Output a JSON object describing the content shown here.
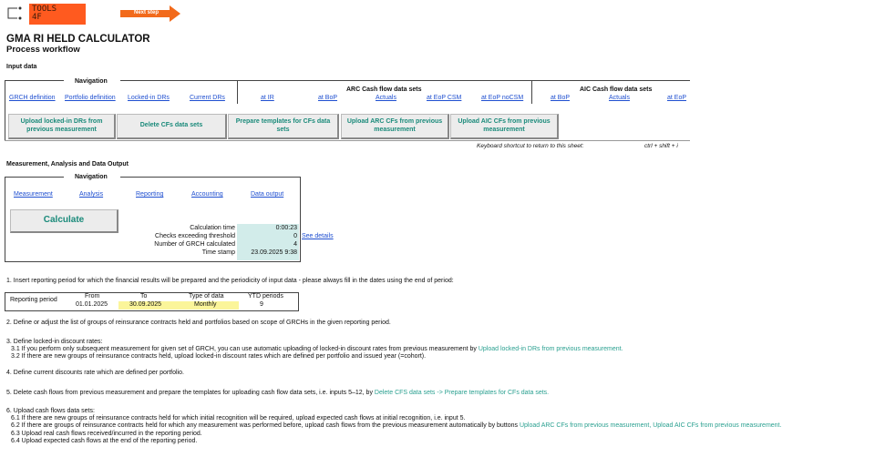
{
  "header": {
    "logo_text_line1": "TOOLS",
    "logo_text_line2": "4F",
    "next_step": "Next step",
    "title": "GMA RI HELD CALCULATOR",
    "subtitle": "Process workflow"
  },
  "input": {
    "section": "Input data",
    "navigation": "Navigation",
    "nav_links": [
      "GRCH definition",
      "Portfolio definition",
      "Locked-in DRs",
      "Current DRs"
    ],
    "arc_title": "ARC Cash flow data sets",
    "arc_links": [
      "at IR",
      "at BoP",
      "Actuals",
      "at EoP CSM",
      "at EoP noCSM"
    ],
    "aic_title": "AIC Cash flow data sets",
    "aic_links": [
      "at BoP",
      "Actuals",
      "at EoP"
    ],
    "buttons": [
      "Upload locked-in DRs from previous measurement",
      "Delete CFs data sets",
      "Prepare templates for CFs data sets",
      "Upload ARC CFs from previous measurement",
      "Upload AIC CFs from previous measurement"
    ],
    "shortcut_label": "Keyboard shortcut to return to this sheet:",
    "shortcut": "ctrl + shift + i"
  },
  "output": {
    "section": "Measurement, Analysis and Data Output",
    "navigation": "Navigation",
    "nav_links": [
      "Measurement",
      "Analysis",
      "Reporting",
      "Accounting",
      "Data output"
    ],
    "calculate": "Calculate",
    "stats": [
      {
        "label": "Calculation time",
        "value": "0:00:23"
      },
      {
        "label": "Checks exceeding threshold",
        "value": "0"
      },
      {
        "label": "Number of GRCH calculated",
        "value": "4"
      },
      {
        "label": "Time stamp",
        "value": "23.09.2025 9:38"
      }
    ],
    "see_details": "See details"
  },
  "period": {
    "label": "Reporting period",
    "from_h": "From",
    "from": "01.01.2025",
    "to_h": "To",
    "to": "30.09.2025",
    "type_h": "Type of data",
    "type": "Monthly",
    "ytd_h": "YTD periods",
    "ytd": "9"
  },
  "steps": {
    "s1": "1. Insert reporting period for which the financial results will be prepared and the periodicity of input data - please always fill in the dates using the end of period:",
    "s2": "2. Define or adjust the list of groups of reinsurance contracts held and portfolios based on scope of GRCHs in the given reporting period.",
    "s3": "3. Define locked-in discount rates:",
    "s31": "3.1 If you perform only subsequent measurement for given set of GRCH, you can use automatic uploading of locked-in discount rates from previous measurement by ",
    "s31_link": "Upload locked-in DRs from previous measurement.",
    "s32": "3.2 If there are new groups of reinsurance contracts held, upload locked-in discount rates which are defined per portfolio and issued year (=cohort).",
    "s4": "4. Define current discounts rate which are defined per portfolio.",
    "s5": "5. Delete cash flows from previous measurement and prepare the templates for uploading cash flow data sets, i.e. inputs 5–12, by ",
    "s5_link": "Delete CFS data sets -> Prepare templates for CFs data sets.",
    "s6": "6. Upload cash flows data sets:",
    "s61": "6.1 If there are new groups of reinsurance contracts held for which initial recognition will be required, upload expected cash flows at initial recognition, i.e. input 5.",
    "s62": "6.2 If there are groups of reinsurance contracts held for which any measurement was performed before, upload cash flows from the previous measurement automatically by buttons ",
    "s62_link": "Upload ARC CFs from previous measurement, Upload AIC CFs from previous measurement.",
    "s63": "6.3 Upload real cash flows received/incurred in the reporting period.",
    "s64": "6.4 Upload expected cash flows at the end of the reporting period."
  },
  "colors": {
    "accent": "#ff5a1f",
    "button_text": "#1a8a7a",
    "value_bg": "#d2ecea",
    "input_bg": "#fbf59a",
    "link": "#1f4fd0"
  }
}
